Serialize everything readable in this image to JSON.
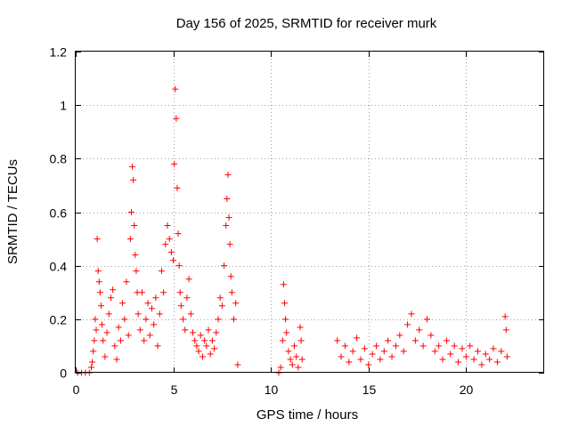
{
  "chart_data": {
    "type": "scatter",
    "title": "Day 156 of 2025, SRMTID for receiver murk",
    "xlabel": "GPS time / hours",
    "ylabel": "SRMTID / TECUs",
    "xlim": [
      0,
      24
    ],
    "ylim": [
      0,
      1.2
    ],
    "xticks": [
      0,
      5,
      10,
      15,
      20
    ],
    "yticks": [
      0,
      0.2,
      0.4,
      0.6,
      0.8,
      1,
      1.2
    ],
    "xtick_labels": [
      "0",
      "5",
      "10",
      "15",
      "20"
    ],
    "ytick_labels": [
      "0",
      "0.2",
      "0.4",
      "0.6",
      "0.8",
      "1",
      "1.2"
    ],
    "grid": true,
    "marker": "+",
    "color": "#ff0000",
    "series": [
      {
        "name": "SRMTID",
        "points": [
          [
            0.1,
            0
          ],
          [
            0.3,
            0
          ],
          [
            0.5,
            0
          ],
          [
            0.7,
            0
          ],
          [
            0.8,
            0.02
          ],
          [
            0.85,
            0.04
          ],
          [
            0.9,
            0.08
          ],
          [
            0.95,
            0.12
          ],
          [
            1.0,
            0.2
          ],
          [
            1.05,
            0.16
          ],
          [
            1.1,
            0.5
          ],
          [
            1.15,
            0.38
          ],
          [
            1.2,
            0.34
          ],
          [
            1.25,
            0.3
          ],
          [
            1.3,
            0.25
          ],
          [
            1.35,
            0.18
          ],
          [
            1.4,
            0.12
          ],
          [
            1.5,
            0.06
          ],
          [
            1.6,
            0.15
          ],
          [
            1.7,
            0.22
          ],
          [
            1.8,
            0.28
          ],
          [
            1.9,
            0.31
          ],
          [
            2.0,
            0.1
          ],
          [
            2.1,
            0.05
          ],
          [
            2.2,
            0.17
          ],
          [
            2.3,
            0.12
          ],
          [
            2.4,
            0.26
          ],
          [
            2.5,
            0.2
          ],
          [
            2.6,
            0.34
          ],
          [
            2.7,
            0.14
          ],
          [
            2.8,
            0.5
          ],
          [
            2.85,
            0.6
          ],
          [
            2.9,
            0.77
          ],
          [
            2.95,
            0.72
          ],
          [
            3.0,
            0.55
          ],
          [
            3.05,
            0.44
          ],
          [
            3.1,
            0.38
          ],
          [
            3.15,
            0.3
          ],
          [
            3.2,
            0.22
          ],
          [
            3.3,
            0.16
          ],
          [
            3.4,
            0.3
          ],
          [
            3.5,
            0.12
          ],
          [
            3.6,
            0.2
          ],
          [
            3.7,
            0.26
          ],
          [
            3.8,
            0.14
          ],
          [
            3.9,
            0.24
          ],
          [
            4.0,
            0.18
          ],
          [
            4.1,
            0.28
          ],
          [
            4.2,
            0.1
          ],
          [
            4.3,
            0.22
          ],
          [
            4.4,
            0.38
          ],
          [
            4.5,
            0.3
          ],
          [
            4.6,
            0.48
          ],
          [
            4.7,
            0.55
          ],
          [
            4.8,
            0.5
          ],
          [
            4.9,
            0.45
          ],
          [
            5.0,
            0.42
          ],
          [
            5.05,
            0.78
          ],
          [
            5.1,
            1.06
          ],
          [
            5.15,
            0.95
          ],
          [
            5.2,
            0.69
          ],
          [
            5.25,
            0.52
          ],
          [
            5.3,
            0.4
          ],
          [
            5.35,
            0.3
          ],
          [
            5.4,
            0.25
          ],
          [
            5.5,
            0.2
          ],
          [
            5.6,
            0.16
          ],
          [
            5.7,
            0.28
          ],
          [
            5.8,
            0.35
          ],
          [
            5.9,
            0.22
          ],
          [
            6.0,
            0.15
          ],
          [
            6.1,
            0.12
          ],
          [
            6.2,
            0.1
          ],
          [
            6.3,
            0.08
          ],
          [
            6.4,
            0.14
          ],
          [
            6.5,
            0.06
          ],
          [
            6.6,
            0.12
          ],
          [
            6.7,
            0.1
          ],
          [
            6.8,
            0.16
          ],
          [
            6.9,
            0.07
          ],
          [
            7.0,
            0.12
          ],
          [
            7.1,
            0.09
          ],
          [
            7.2,
            0.15
          ],
          [
            7.3,
            0.2
          ],
          [
            7.4,
            0.28
          ],
          [
            7.5,
            0.25
          ],
          [
            7.6,
            0.4
          ],
          [
            7.7,
            0.55
          ],
          [
            7.75,
            0.65
          ],
          [
            7.8,
            0.74
          ],
          [
            7.85,
            0.58
          ],
          [
            7.9,
            0.48
          ],
          [
            7.95,
            0.36
          ],
          [
            8.0,
            0.3
          ],
          [
            8.1,
            0.2
          ],
          [
            8.2,
            0.26
          ],
          [
            8.3,
            0.03
          ],
          [
            10.4,
            0
          ],
          [
            10.5,
            0.02
          ],
          [
            10.6,
            0.12
          ],
          [
            10.65,
            0.33
          ],
          [
            10.7,
            0.26
          ],
          [
            10.75,
            0.2
          ],
          [
            10.8,
            0.15
          ],
          [
            10.9,
            0.08
          ],
          [
            11.0,
            0.05
          ],
          [
            11.1,
            0.03
          ],
          [
            11.2,
            0.1
          ],
          [
            11.3,
            0.06
          ],
          [
            11.4,
            0.02
          ],
          [
            11.5,
            0.17
          ],
          [
            11.55,
            0.12
          ],
          [
            11.6,
            0.05
          ],
          [
            13.4,
            0.12
          ],
          [
            13.6,
            0.06
          ],
          [
            13.8,
            0.1
          ],
          [
            14.0,
            0.04
          ],
          [
            14.2,
            0.08
          ],
          [
            14.4,
            0.13
          ],
          [
            14.6,
            0.05
          ],
          [
            14.8,
            0.09
          ],
          [
            15.0,
            0.03
          ],
          [
            15.2,
            0.07
          ],
          [
            15.4,
            0.1
          ],
          [
            15.6,
            0.05
          ],
          [
            15.8,
            0.08
          ],
          [
            16.0,
            0.12
          ],
          [
            16.2,
            0.06
          ],
          [
            16.4,
            0.1
          ],
          [
            16.6,
            0.14
          ],
          [
            16.8,
            0.08
          ],
          [
            17.0,
            0.18
          ],
          [
            17.2,
            0.22
          ],
          [
            17.4,
            0.12
          ],
          [
            17.6,
            0.16
          ],
          [
            17.8,
            0.1
          ],
          [
            18.0,
            0.2
          ],
          [
            18.2,
            0.14
          ],
          [
            18.4,
            0.08
          ],
          [
            18.6,
            0.1
          ],
          [
            18.8,
            0.05
          ],
          [
            19.0,
            0.12
          ],
          [
            19.2,
            0.07
          ],
          [
            19.4,
            0.1
          ],
          [
            19.6,
            0.04
          ],
          [
            19.8,
            0.09
          ],
          [
            20.0,
            0.06
          ],
          [
            20.2,
            0.1
          ],
          [
            20.4,
            0.05
          ],
          [
            20.6,
            0.08
          ],
          [
            20.8,
            0.03
          ],
          [
            21.0,
            0.07
          ],
          [
            21.2,
            0.05
          ],
          [
            21.4,
            0.09
          ],
          [
            21.6,
            0.04
          ],
          [
            21.8,
            0.08
          ],
          [
            22.0,
            0.21
          ],
          [
            22.05,
            0.16
          ],
          [
            22.1,
            0.06
          ]
        ]
      }
    ]
  }
}
